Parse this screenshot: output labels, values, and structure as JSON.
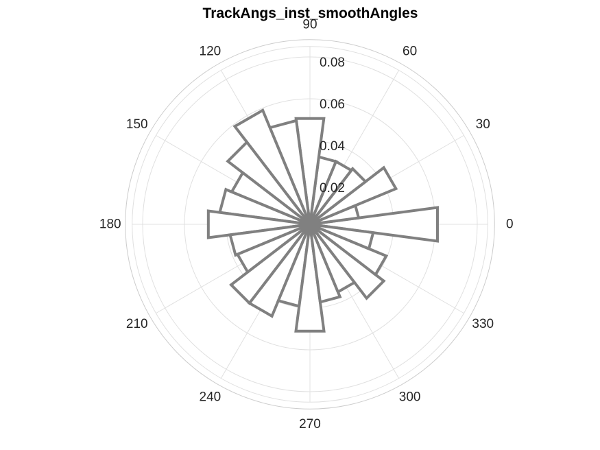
{
  "chart_data": {
    "type": "polar-histogram",
    "title": "TrackAngs_inst_smoothAngles",
    "bin_width_deg": 15,
    "r_ticks": [
      "0.02",
      "0.04",
      "0.06",
      "0.08"
    ],
    "r_tick_values": [
      0.02,
      0.04,
      0.06,
      0.08
    ],
    "r_max": 0.085,
    "theta_ticks": [
      "0",
      "30",
      "60",
      "90",
      "120",
      "150",
      "180",
      "210",
      "240",
      "270",
      "300",
      "330"
    ],
    "theta_tick_values": [
      0,
      30,
      60,
      90,
      120,
      150,
      180,
      210,
      240,
      270,
      300,
      330
    ],
    "bins": [
      {
        "start": -7.5,
        "end": 7.5,
        "value": 0.0615
      },
      {
        "start": 7.5,
        "end": 22.5,
        "value": 0.0235
      },
      {
        "start": 22.5,
        "end": 37.5,
        "value": 0.0445
      },
      {
        "start": 37.5,
        "end": 52.5,
        "value": 0.0335
      },
      {
        "start": 52.5,
        "end": 67.5,
        "value": 0.0325
      },
      {
        "start": 67.5,
        "end": 82.5,
        "value": 0.0325
      },
      {
        "start": 82.5,
        "end": 97.5,
        "value": 0.051
      },
      {
        "start": 97.5,
        "end": 112.5,
        "value": 0.05
      },
      {
        "start": 112.5,
        "end": 127.5,
        "value": 0.059
      },
      {
        "start": 127.5,
        "end": 142.5,
        "value": 0.0495
      },
      {
        "start": 142.5,
        "end": 157.5,
        "value": 0.0405
      },
      {
        "start": 157.5,
        "end": 172.5,
        "value": 0.0435
      },
      {
        "start": 172.5,
        "end": 187.5,
        "value": 0.049
      },
      {
        "start": 187.5,
        "end": 202.5,
        "value": 0.0385
      },
      {
        "start": 202.5,
        "end": 217.5,
        "value": 0.0375
      },
      {
        "start": 217.5,
        "end": 232.5,
        "value": 0.0475
      },
      {
        "start": 232.5,
        "end": 247.5,
        "value": 0.0475
      },
      {
        "start": 247.5,
        "end": 262.5,
        "value": 0.0395
      },
      {
        "start": 262.5,
        "end": 277.5,
        "value": 0.0515
      },
      {
        "start": 277.5,
        "end": 292.5,
        "value": 0.0375
      },
      {
        "start": 292.5,
        "end": 307.5,
        "value": 0.035
      },
      {
        "start": 307.5,
        "end": 322.5,
        "value": 0.0445
      },
      {
        "start": 322.5,
        "end": 337.5,
        "value": 0.0395
      },
      {
        "start": 337.5,
        "end": 352.5,
        "value": 0.0305
      }
    ],
    "grid": true,
    "colors": {
      "bar_stroke": "#808080",
      "bar_fill": "#ffffff",
      "grid": "#e0e0e0",
      "outer_ring": "#cccccc",
      "text": "#262626"
    }
  }
}
